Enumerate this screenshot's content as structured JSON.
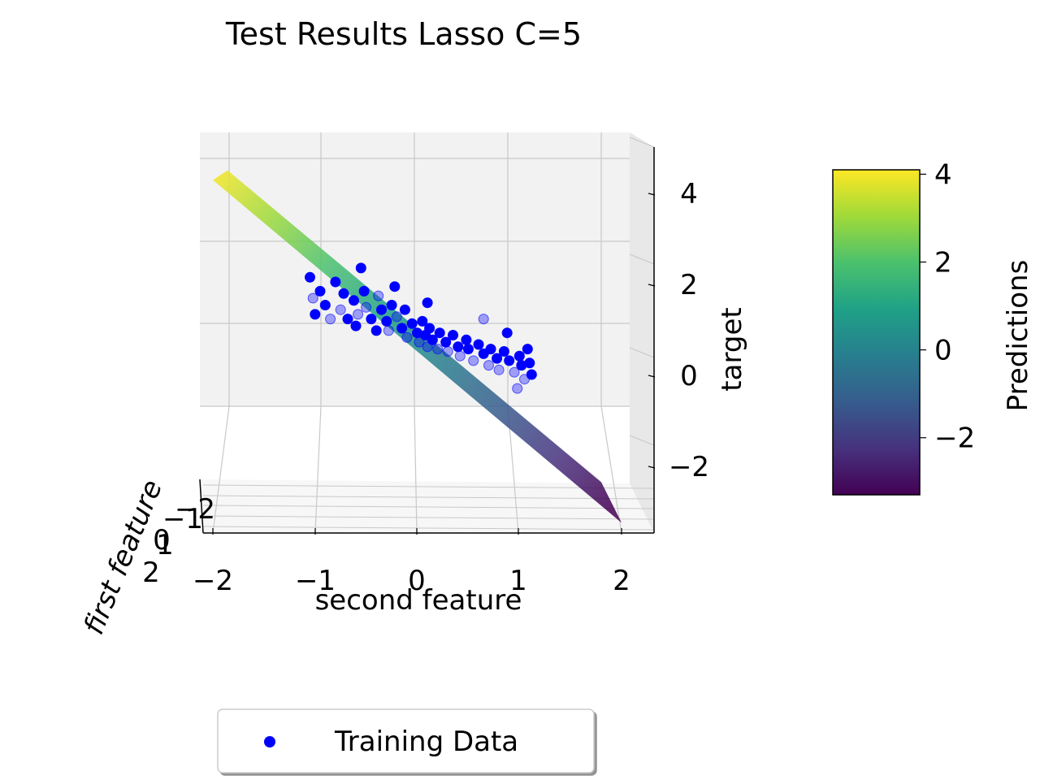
{
  "chart_data": {
    "type": "scatter",
    "title": "Test Results Lasso C=5",
    "projection": "3d",
    "xlabel": "second feature",
    "ylabel": "first feature",
    "zlabel": "target",
    "x_ticks": [
      "−2",
      "−1",
      "0",
      "1",
      "2"
    ],
    "y_ticks": [
      "2",
      "1",
      "0",
      "−1",
      "−2"
    ],
    "z_ticks": [
      "−2",
      "0",
      "2",
      "4"
    ],
    "xlim": [
      -2.2,
      2.2
    ],
    "zlim": [
      -3.0,
      4.6
    ],
    "grid": true,
    "legend_position": "bottom-center",
    "legend": [
      "Training Data"
    ],
    "colorbar": {
      "label": "Predictions",
      "cmap": "viridis",
      "range": [
        -3.3,
        4.1
      ],
      "ticks": [
        "4",
        "2",
        "0",
        "−2"
      ],
      "tick_values": [
        4,
        2,
        0,
        -2
      ]
    },
    "surface": {
      "name": "Predictions",
      "x_range": [
        -2.0,
        2.0
      ],
      "z_at_x_min": 4.2,
      "z_at_x_max": -3.2
    },
    "series": [
      {
        "name": "Training Data",
        "color": "#0000ff",
        "points": [
          [
            -1.05,
            2.1
          ],
          [
            -0.95,
            1.8
          ],
          [
            -1.02,
            1.65
          ],
          [
            -0.9,
            1.5
          ],
          [
            -1.0,
            1.3
          ],
          [
            -0.85,
            1.2
          ],
          [
            -0.8,
            2.0
          ],
          [
            -0.72,
            1.75
          ],
          [
            -0.75,
            1.4
          ],
          [
            -0.68,
            1.2
          ],
          [
            -0.62,
            1.6
          ],
          [
            -0.58,
            1.3
          ],
          [
            -0.6,
            1.05
          ],
          [
            -0.52,
            1.8
          ],
          [
            -0.5,
            1.45
          ],
          [
            -0.45,
            1.2
          ],
          [
            -0.4,
            0.95
          ],
          [
            -0.38,
            1.7
          ],
          [
            -0.35,
            1.4
          ],
          [
            -0.3,
            1.15
          ],
          [
            -0.28,
            0.95
          ],
          [
            -0.25,
            1.5
          ],
          [
            -0.22,
            1.9
          ],
          [
            -0.2,
            1.25
          ],
          [
            -0.15,
            1.0
          ],
          [
            -0.12,
            1.4
          ],
          [
            -0.1,
            0.8
          ],
          [
            -0.05,
            1.1
          ],
          [
            0.0,
            0.9
          ],
          [
            0.02,
            0.7
          ],
          [
            0.05,
            1.15
          ],
          [
            0.08,
            0.85
          ],
          [
            0.1,
            0.6
          ],
          [
            0.12,
            1.0
          ],
          [
            0.15,
            0.75
          ],
          [
            0.2,
            0.55
          ],
          [
            0.22,
            0.9
          ],
          [
            0.28,
            0.7
          ],
          [
            0.3,
            0.5
          ],
          [
            0.35,
            0.85
          ],
          [
            0.4,
            0.6
          ],
          [
            0.42,
            0.4
          ],
          [
            0.48,
            0.75
          ],
          [
            0.5,
            0.55
          ],
          [
            0.55,
            0.3
          ],
          [
            0.6,
            0.65
          ],
          [
            0.65,
            0.45
          ],
          [
            0.7,
            0.2
          ],
          [
            0.72,
            0.55
          ],
          [
            0.78,
            0.35
          ],
          [
            0.8,
            0.1
          ],
          [
            0.85,
            0.5
          ],
          [
            0.9,
            0.3
          ],
          [
            0.95,
            0.05
          ],
          [
            1.0,
            0.4
          ],
          [
            1.02,
            0.2
          ],
          [
            1.05,
            -0.1
          ],
          [
            1.1,
            0.25
          ],
          [
            1.12,
            0.0
          ],
          [
            0.98,
            -0.3
          ],
          [
            -0.55,
            2.3
          ],
          [
            0.1,
            1.55
          ],
          [
            0.65,
            1.2
          ],
          [
            0.88,
            0.9
          ],
          [
            1.08,
            0.55
          ]
        ]
      }
    ]
  }
}
